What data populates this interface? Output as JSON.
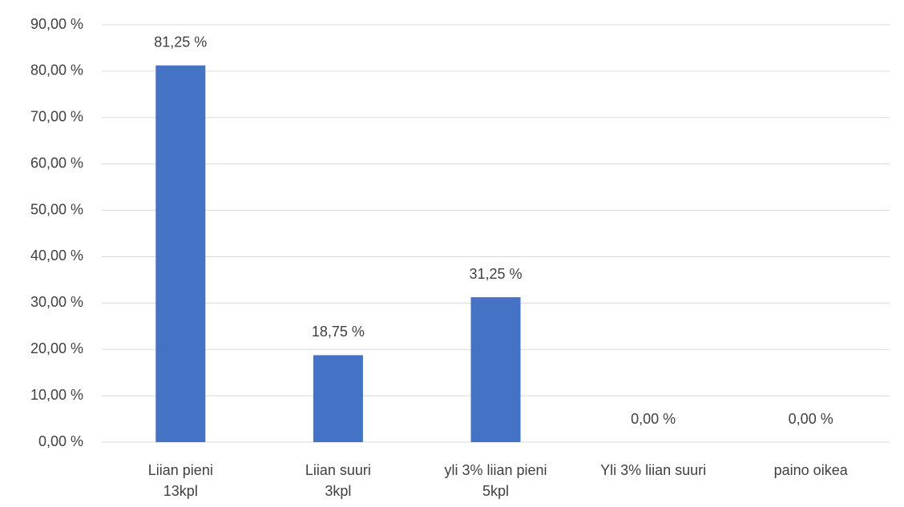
{
  "chart_data": {
    "type": "bar",
    "categories": [
      "Liian pieni\n13kpl",
      "Liian suuri\n3kpl",
      "yli 3% liian pieni\n5kpl",
      "Yli 3% liian suuri",
      "paino oikea"
    ],
    "values": [
      81.25,
      18.75,
      31.25,
      0,
      0
    ],
    "value_labels": [
      "81,25 %",
      "18,75 %",
      "31,25 %",
      "0,00 %",
      "0,00 %"
    ],
    "color": "#4472c4",
    "ylim": [
      0,
      90
    ],
    "yticks": [
      {
        "value": 0,
        "label": "0,00 %"
      },
      {
        "value": 10,
        "label": "10,00 %"
      },
      {
        "value": 20,
        "label": "20,00 %"
      },
      {
        "value": 30,
        "label": "30,00 %"
      },
      {
        "value": 40,
        "label": "40,00 %"
      },
      {
        "value": 50,
        "label": "50,00 %"
      },
      {
        "value": 60,
        "label": "60,00 %"
      },
      {
        "value": 70,
        "label": "70,00 %"
      },
      {
        "value": 80,
        "label": "80,00 %"
      },
      {
        "value": 90,
        "label": "90,00 %"
      }
    ],
    "grid": true
  }
}
